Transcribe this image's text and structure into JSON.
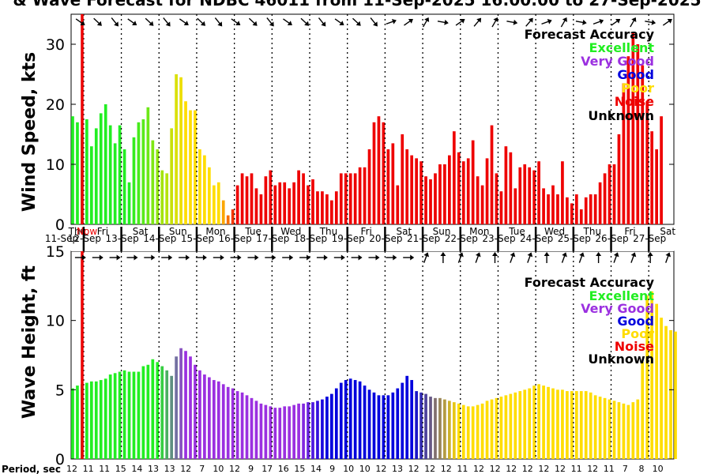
{
  "title": "& Wave Forecast for NDBC 46011 from 11-Sep-2025 16:00:00 to 27-Sep-2025",
  "now_label": "Now",
  "accuracy_legend": {
    "title": "Forecast Accuracy",
    "entries": [
      {
        "label": "Excellent",
        "color": "#22ee22"
      },
      {
        "label": "Very Good",
        "color": "#9b30e0"
      },
      {
        "label": "Good",
        "color": "#0000dd"
      },
      {
        "label": "Poor",
        "color": "#ffdd00"
      },
      {
        "label": "Noise",
        "color": "#ee0000"
      },
      {
        "label": "Unknown",
        "color": "#000000"
      }
    ]
  },
  "days": [
    {
      "weekday": "Thu",
      "date": "11-Sep"
    },
    {
      "weekday": "Fri",
      "date": "12-Sep"
    },
    {
      "weekday": "Sat",
      "date": "13-Sep"
    },
    {
      "weekday": "Sun",
      "date": "14-Sep"
    },
    {
      "weekday": "Mon",
      "date": "15-Sep"
    },
    {
      "weekday": "Tue",
      "date": "16-Sep"
    },
    {
      "weekday": "Wed",
      "date": "17-Sep"
    },
    {
      "weekday": "Thu",
      "date": "18-Sep"
    },
    {
      "weekday": "Fri",
      "date": "19-Sep"
    },
    {
      "weekday": "Sat",
      "date": "20-Sep"
    },
    {
      "weekday": "Sun",
      "date": "21-Sep"
    },
    {
      "weekday": "Mon",
      "date": "22-Sep"
    },
    {
      "weekday": "Tue",
      "date": "23-Sep"
    },
    {
      "weekday": "Wed",
      "date": "24-Sep"
    },
    {
      "weekday": "Thu",
      "date": "25-Sep"
    },
    {
      "weekday": "Fri",
      "date": "26-Sep"
    },
    {
      "weekday": "Sat",
      "date": "27-Sep"
    }
  ],
  "period_label": "Period, sec",
  "periods": [
    "12",
    "11",
    "11",
    "15",
    "14",
    "13",
    "13",
    "12",
    "7",
    "10",
    "12",
    "9",
    "17",
    "16",
    "15",
    "14",
    "9",
    "10",
    "10",
    "12",
    "13",
    "12",
    "12",
    "12",
    "11",
    "12",
    "12",
    "12",
    "12",
    "12",
    "12",
    "11",
    "12",
    "11",
    "7",
    "8",
    "10"
  ],
  "chart_data": [
    {
      "type": "bar",
      "title": "Wind Speed",
      "ylabel": "Wind Speed, kts",
      "ylim": [
        0,
        35
      ],
      "yticks": [
        0,
        10,
        20,
        30
      ],
      "x_unit": "hours since 11-Sep 16:00",
      "x_range": [
        0,
        384
      ],
      "bar_spacing_hours": 3,
      "values": [
        18,
        17,
        15,
        17.5,
        13,
        16,
        18.5,
        20,
        16.5,
        13.5,
        16.5,
        12.5,
        7,
        14.5,
        17,
        17.5,
        19.5,
        14,
        12.5,
        9,
        8.5,
        16,
        25,
        24.5,
        20.5,
        19,
        19,
        12.5,
        11.5,
        9.5,
        6.5,
        7,
        4,
        1.5,
        2.5,
        6.5,
        8.5,
        8,
        8.5,
        6,
        5,
        8,
        9,
        6.5,
        7,
        7,
        6,
        7,
        9,
        8.5,
        6.5,
        7.5,
        5.5,
        5.5,
        5,
        4,
        5.5,
        8.5,
        8.5,
        8.5,
        8.5,
        9.5,
        9.5,
        12.5,
        17,
        18,
        17,
        12.5,
        13.5,
        6.5,
        15,
        12.5,
        11.5,
        11,
        10.5,
        8,
        7.5,
        8.5,
        10,
        10,
        11.5,
        15.5,
        12,
        10.5,
        11,
        14,
        8,
        6.5,
        11,
        16.5,
        8.5,
        5.5,
        13,
        12,
        6,
        9.5,
        10,
        9.5,
        9,
        10.5,
        6,
        5,
        6.5,
        5,
        10.5,
        4.5,
        3.5,
        5,
        2.5,
        4.5,
        5,
        5,
        7,
        8.5,
        10,
        10,
        15,
        23.5,
        28,
        32,
        30,
        26.5,
        20.5,
        15.5,
        12.5,
        18
      ]
    },
    {
      "type": "bar",
      "title": "Wave Height",
      "ylabel": "Wave Height, ft",
      "ylim": [
        0,
        15
      ],
      "yticks": [
        0,
        5,
        10,
        15
      ],
      "x_unit": "hours since 11-Sep 16:00",
      "x_range": [
        0,
        384
      ],
      "bar_spacing_hours": 3,
      "values": [
        5.1,
        5.3,
        5.4,
        5.5,
        5.6,
        5.6,
        5.7,
        5.8,
        6.1,
        6.2,
        6.3,
        6.4,
        6.3,
        6.3,
        6.3,
        6.7,
        6.8,
        7.2,
        7.0,
        6.7,
        6.4,
        6.0,
        7.4,
        8.0,
        7.8,
        7.4,
        6.8,
        6.4,
        6.1,
        5.9,
        5.7,
        5.6,
        5.4,
        5.2,
        5.1,
        4.9,
        4.8,
        4.6,
        4.4,
        4.2,
        4.0,
        3.9,
        3.8,
        3.7,
        3.7,
        3.8,
        3.8,
        3.9,
        4.0,
        4.0,
        4.1,
        4.1,
        4.2,
        4.3,
        4.5,
        4.7,
        5.1,
        5.5,
        5.7,
        5.8,
        5.7,
        5.6,
        5.3,
        5.0,
        4.8,
        4.6,
        4.6,
        4.6,
        4.8,
        5.1,
        5.5,
        6.0,
        5.7,
        4.9,
        4.8,
        4.7,
        4.5,
        4.4,
        4.4,
        4.3,
        4.2,
        4.1,
        4.0,
        3.9,
        3.8,
        3.8,
        3.9,
        4.0,
        4.2,
        4.3,
        4.4,
        4.5,
        4.6,
        4.7,
        4.8,
        4.9,
        5.0,
        5.1,
        5.3,
        5.4,
        5.3,
        5.2,
        5.1,
        5.0,
        5.0,
        4.9,
        4.9,
        4.9,
        4.9,
        4.9,
        4.8,
        4.6,
        4.5,
        4.4,
        4.3,
        4.2,
        4.1,
        4.0,
        3.9,
        4.1,
        4.3,
        7.0,
        11.8,
        12.1,
        11.2,
        10.2,
        9.6,
        9.3,
        9.2
      ]
    }
  ],
  "colors": {
    "excellent": "#22ee22",
    "very_good": "#9b30e0",
    "good": "#0000dd",
    "poor": "#ffdd00",
    "noise": "#ee0000",
    "now_line": "#ee0000"
  }
}
